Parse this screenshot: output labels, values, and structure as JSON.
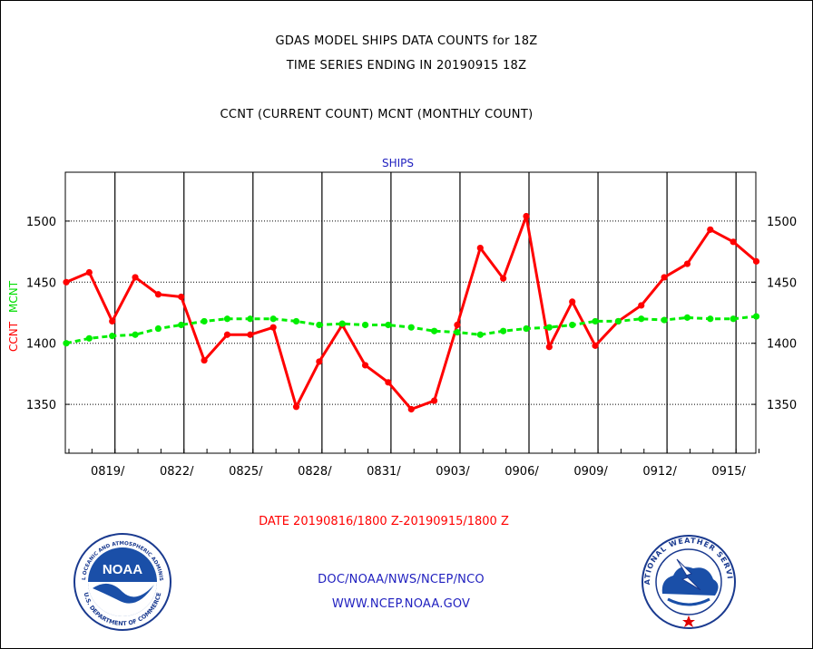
{
  "header": {
    "title": "GDAS MODEL SHIPS DATA COUNTS for 18Z",
    "subtitle": "TIME SERIES ENDING IN 20190915 18Z",
    "description": "CCNT (CURRENT COUNT) MCNT (MONTHLY COUNT)"
  },
  "footer": {
    "agency": "DOC/NOAA/NWS/NCEP/NCO",
    "url": "WWW.NCEP.NOAA.GOV"
  },
  "logos": {
    "noaa_text": "NOAA",
    "noaa_ring_top": "NATIONAL OCEANIC AND ATMOSPHERIC ADMINISTRATION",
    "noaa_ring_bottom": "U.S. DEPARTMENT OF COMMERCE",
    "nws_ring": "NATIONAL WEATHER SERVICE"
  },
  "chart_data": {
    "type": "line",
    "title": "SHIPS",
    "ylabel_left": "CCNT",
    "ylabel_right": "MCNT",
    "xlabel": "DATE 20190816/1800 Z-20190915/1800 Z",
    "ylim": [
      1310,
      1540
    ],
    "yticks": [
      1350,
      1400,
      1450,
      1500
    ],
    "xticks": [
      "0819/",
      "0822/",
      "0825/",
      "0828/",
      "0831/",
      "0903/",
      "0906/",
      "0909/",
      "0912/",
      "0915/"
    ],
    "grid": true,
    "series": [
      {
        "name": "CCNT",
        "color": "#ff0000",
        "style": "solid",
        "values": [
          1450,
          1458,
          1418,
          1454,
          1440,
          1438,
          1386,
          1407,
          1407,
          1413,
          1348,
          1385,
          1415,
          1382,
          1368,
          1346,
          1353,
          1415,
          1478,
          1453,
          1504,
          1397,
          1434,
          1398,
          1418,
          1431,
          1454,
          1465,
          1493,
          1483,
          1467
        ]
      },
      {
        "name": "MCNT",
        "color": "#00ee00",
        "style": "dashed",
        "values": [
          1400,
          1404,
          1406,
          1407,
          1412,
          1415,
          1418,
          1420,
          1420,
          1420,
          1418,
          1415,
          1416,
          1415,
          1415,
          1413,
          1410,
          1409,
          1407,
          1410,
          1412,
          1413,
          1415,
          1418,
          1418,
          1420,
          1419,
          1421,
          1420,
          1420,
          1422
        ]
      }
    ]
  }
}
